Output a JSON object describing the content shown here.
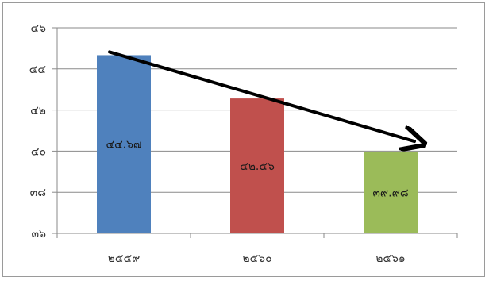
{
  "chart_data": {
    "type": "bar",
    "title": "",
    "xlabel": "",
    "ylabel": "",
    "categories": [
      "๒๕๕๙",
      "๒๕๖๐",
      "๒๕๖๑"
    ],
    "values": [
      44.67,
      42.56,
      39.98
    ],
    "data_labels": [
      "๔๔.๖๗",
      "๔๒.๕๖",
      "๓๙.๙๘"
    ],
    "colors": [
      "#4f81bd",
      "#c0504d",
      "#9bbb59"
    ],
    "ylim": [
      36,
      46
    ],
    "yticks": [
      36,
      38,
      40,
      42,
      44,
      46
    ],
    "ytick_labels": [
      "๓๖",
      "๓๘",
      "๔๐",
      "๔๒",
      "๔๔",
      "๔๖"
    ],
    "grid": true,
    "legend": "none",
    "trend_arrow": {
      "from": {
        "category": 0,
        "value": 44.67
      },
      "to": {
        "category": 2,
        "value": 40.4
      },
      "color": "#000000"
    }
  }
}
